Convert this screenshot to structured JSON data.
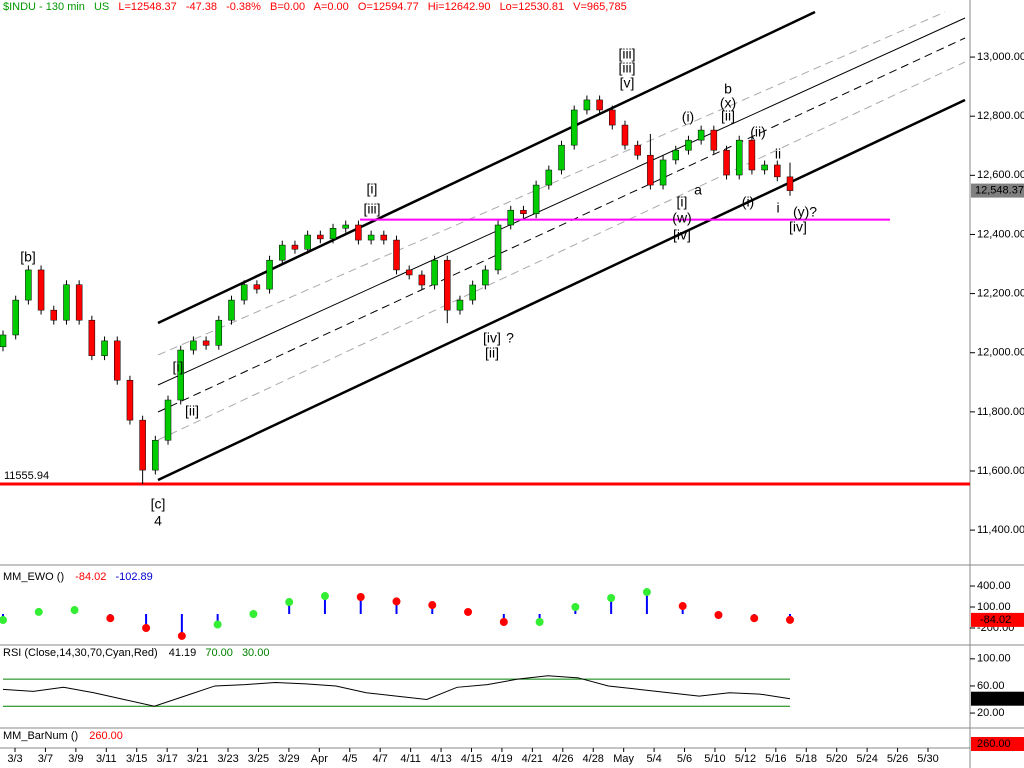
{
  "chart_data": {
    "type": "candlestick",
    "header": {
      "symbol": "$INDU - 130 min",
      "region": "US",
      "last": "L=12548.37",
      "change": "-47.38",
      "pct": "-0.38%",
      "bid": "B=0.00",
      "ask": "A=0.00",
      "open": "O=12594.77",
      "high": "Hi=12642.90",
      "low": "Lo=12530.81",
      "volume": "V=965,785"
    },
    "up_color": "#00cc00",
    "down_color": "#ff0000",
    "ylim": [
      11282,
      13193
    ],
    "yticks": [
      {
        "value": 11400,
        "label": "11,400.00"
      },
      {
        "value": 11600,
        "label": "11,600.00"
      },
      {
        "value": 11800,
        "label": "11,800.00"
      },
      {
        "value": 12000,
        "label": "12,000.00"
      },
      {
        "value": 12200,
        "label": "12,200.00"
      },
      {
        "value": 12400,
        "label": "12,400.00"
      },
      {
        "value": 12600,
        "label": "12,600.00"
      },
      {
        "value": 12800,
        "label": "12,800.00"
      },
      {
        "value": 13000,
        "label": "13,000.00"
      }
    ],
    "categories": [
      "3/3",
      "3/7",
      "3/9",
      "3/11",
      "3/15",
      "3/17",
      "3/21",
      "3/23",
      "3/25",
      "3/29",
      "Apr",
      "4/5",
      "4/7",
      "4/11",
      "4/13",
      "4/15",
      "4/19",
      "4/21",
      "4/26",
      "4/28",
      "May",
      "5/4",
      "5/6",
      "5/10",
      "5/12",
      "5/16",
      "5/18",
      "5/20",
      "5/24",
      "5/26",
      "5/30"
    ],
    "ohlc": [
      [
        12020,
        12075,
        12005,
        12060
      ],
      [
        12060,
        12193,
        12045,
        12178
      ],
      [
        12178,
        12295,
        12163,
        12280
      ],
      [
        12280,
        12295,
        12129,
        12144
      ],
      [
        12144,
        12159,
        12095,
        12110
      ],
      [
        12110,
        12245,
        12095,
        12230
      ],
      [
        12230,
        12245,
        12095,
        12110
      ],
      [
        12110,
        12125,
        11975,
        11990
      ],
      [
        11990,
        12055,
        11975,
        12040
      ],
      [
        12040,
        12055,
        11892,
        11907
      ],
      [
        11907,
        11922,
        11757,
        11772
      ],
      [
        11772,
        11787,
        11556,
        11603
      ],
      [
        11603,
        11719,
        11588,
        11704
      ],
      [
        11704,
        11855,
        11689,
        11840
      ],
      [
        11840,
        12024,
        11825,
        12009
      ],
      [
        12009,
        12055,
        11994,
        12040
      ],
      [
        12040,
        12055,
        12010,
        12025
      ],
      [
        12025,
        12125,
        12010,
        12110
      ],
      [
        12110,
        12193,
        12095,
        12178
      ],
      [
        12178,
        12245,
        12163,
        12230
      ],
      [
        12230,
        12245,
        12200,
        12215
      ],
      [
        12215,
        12328,
        12200,
        12313
      ],
      [
        12313,
        12379,
        12298,
        12364
      ],
      [
        12364,
        12379,
        12335,
        12350
      ],
      [
        12350,
        12413,
        12335,
        12398
      ],
      [
        12398,
        12413,
        12370,
        12385
      ],
      [
        12385,
        12436,
        12370,
        12421
      ],
      [
        12421,
        12447,
        12406,
        12432
      ],
      [
        12432,
        12447,
        12366,
        12381
      ],
      [
        12381,
        12413,
        12366,
        12398
      ],
      [
        12398,
        12413,
        12366,
        12381
      ],
      [
        12381,
        12396,
        12265,
        12280
      ],
      [
        12280,
        12295,
        12248,
        12263
      ],
      [
        12263,
        12278,
        12214,
        12229
      ],
      [
        12229,
        12328,
        12214,
        12313
      ],
      [
        12313,
        12328,
        12100,
        12144
      ],
      [
        12144,
        12193,
        12129,
        12178
      ],
      [
        12178,
        12244,
        12163,
        12229
      ],
      [
        12229,
        12295,
        12214,
        12280
      ],
      [
        12280,
        12447,
        12265,
        12432
      ],
      [
        12432,
        12497,
        12417,
        12482
      ],
      [
        12482,
        12497,
        12455,
        12470
      ],
      [
        12470,
        12582,
        12455,
        12567
      ],
      [
        12567,
        12633,
        12552,
        12618
      ],
      [
        12618,
        12717,
        12603,
        12702
      ],
      [
        12702,
        12836,
        12687,
        12821
      ],
      [
        12821,
        12870,
        12806,
        12855
      ],
      [
        12855,
        12870,
        12806,
        12821
      ],
      [
        12821,
        12836,
        12755,
        12770
      ],
      [
        12770,
        12785,
        12687,
        12702
      ],
      [
        12702,
        12717,
        12653,
        12668
      ],
      [
        12668,
        12740,
        12552,
        12567
      ],
      [
        12567,
        12667,
        12552,
        12652
      ],
      [
        12652,
        12700,
        12637,
        12685
      ],
      [
        12685,
        12734,
        12670,
        12719
      ],
      [
        12719,
        12768,
        12704,
        12753
      ],
      [
        12753,
        12768,
        12670,
        12685
      ],
      [
        12685,
        12700,
        12586,
        12601
      ],
      [
        12601,
        12734,
        12586,
        12719
      ],
      [
        12719,
        12734,
        12603,
        12618
      ],
      [
        12618,
        12650,
        12603,
        12635
      ],
      [
        12635,
        12650,
        12580,
        12594.77
      ],
      [
        12594.77,
        12642.9,
        12530.81,
        12548.37
      ]
    ],
    "last_price": 12548.37,
    "last_price_label": "12,548.37",
    "support": 11555.94,
    "support_label": "11555.94",
    "support_color": "#ff0000",
    "resistance": 12450,
    "resistance_color": "#ff00ff",
    "annotations": [
      {
        "text": "[b]",
        "color": "#000000"
      },
      {
        "text": "[c]",
        "color": "#000000"
      },
      {
        "text": "4",
        "color": "#000000"
      },
      {
        "text": "[i]",
        "color": "#000000"
      },
      {
        "text": "[ii]",
        "color": "#000000"
      },
      {
        "text": "[i]",
        "color": "#0000cc"
      },
      {
        "text": "[iii]",
        "color": "#000000"
      },
      {
        "text": "[iv]",
        "color": "#000000"
      },
      {
        "text": "?",
        "color": "#000000"
      },
      {
        "text": "[ii]",
        "color": "#0000cc"
      },
      {
        "text": "[iii]",
        "color": "#cc00cc"
      },
      {
        "text": "[iii]",
        "color": "#0000cc"
      },
      {
        "text": "[v]",
        "color": "#000000"
      },
      {
        "text": "(i)",
        "color": "#ff00ff"
      },
      {
        "text": "a",
        "color": "#ff00ff"
      },
      {
        "text": "[i]",
        "color": "#000000"
      },
      {
        "text": "(w)",
        "color": "#6600cc"
      },
      {
        "text": "[iv]",
        "color": "#cc00cc"
      },
      {
        "text": "b",
        "color": "#ff00ff"
      },
      {
        "text": "(x)",
        "color": "#0000cc"
      },
      {
        "text": "[ii]",
        "color": "#000000"
      },
      {
        "text": "(ii)",
        "color": "#000000"
      },
      {
        "text": "ii",
        "color": "#000000"
      },
      {
        "text": "(i)",
        "color": "#000000"
      },
      {
        "text": "i",
        "color": "#000000"
      },
      {
        "text": "(y)?",
        "color": "#0000cc"
      },
      {
        "text": "[iv]",
        "color": "#0000cc"
      }
    ],
    "ewo": {
      "title": "MM_EWO ()",
      "value1": "-84.02",
      "value2": "-102.89",
      "ylim": [
        -400,
        629
      ],
      "yticks": [
        {
          "value": 400,
          "label": "400.00"
        },
        {
          "value": 100,
          "label": "100.00"
        },
        {
          "value": -200,
          "label": "-200.00"
        }
      ],
      "values": [
        -86,
        30,
        57,
        -60,
        -200,
        -314,
        -150,
        0,
        171,
        257,
        243,
        180,
        128,
        29,
        -114,
        -114,
        100,
        229,
        314,
        114,
        -14,
        -60,
        -84.02
      ],
      "hist_color": "#0000ff",
      "up_color": "#33ee33",
      "down_color": "#ff0000"
    },
    "rsi": {
      "title": "RSI (Close,14,30,70,Cyan,Red)",
      "value": "41.19",
      "upper_label": "70.00",
      "lower_label": "30.00",
      "upper": 70,
      "lower": 30,
      "ylim": [
        -5,
        116
      ],
      "yticks": [
        {
          "value": 100,
          "label": "100.00"
        },
        {
          "value": 60,
          "label": "60.00"
        },
        {
          "value": 20,
          "label": "20.00"
        }
      ],
      "values": [
        55,
        52,
        58,
        50,
        40,
        30,
        45,
        60,
        62,
        65,
        63,
        60,
        50,
        45,
        40,
        58,
        62,
        70,
        75,
        72,
        60,
        55,
        50,
        45,
        50,
        48,
        41.19
      ],
      "color": "#000000",
      "band_color": "#008000"
    },
    "barnum": {
      "title": "MM_BarNum ()",
      "value_label": "260.00",
      "color": "#ff0000"
    }
  }
}
